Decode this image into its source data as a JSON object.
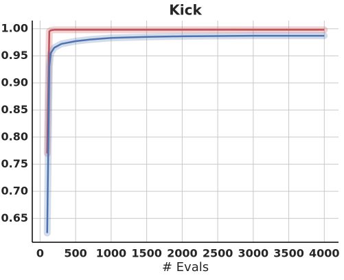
{
  "chart_data": {
    "type": "line",
    "title": "Kick",
    "x_label": "# Evals",
    "x": [
      100,
      130,
      150,
      200,
      300,
      500,
      700,
      1000,
      1500,
      2000,
      3000,
      4000
    ],
    "series": [
      {
        "color": "#c44e52",
        "values": [
          0.77,
          0.995,
          0.997,
          0.998,
          0.998,
          0.998,
          0.998,
          0.998,
          0.998,
          0.998,
          0.998,
          0.998
        ]
      },
      {
        "color": "#4c72b0",
        "values": [
          0.623,
          0.93,
          0.955,
          0.965,
          0.972,
          0.977,
          0.98,
          0.983,
          0.985,
          0.986,
          0.987,
          0.987
        ]
      }
    ],
    "xlim": [
      -110,
      4200
    ],
    "xticks": [
      0,
      500,
      1000,
      1500,
      2000,
      2500,
      3000,
      3500,
      4000
    ],
    "ylim": [
      0.606,
      1.015
    ],
    "yticks": [
      0.65,
      {
        "value": 0.7,
        "label": "0.70"
      },
      0.75,
      {
        "value": 0.8,
        "label": "0.80"
      },
      0.85,
      {
        "value": 0.9,
        "label": "0.90"
      },
      0.95,
      {
        "value": 1,
        "label": "1.00"
      }
    ],
    "grid": true
  }
}
